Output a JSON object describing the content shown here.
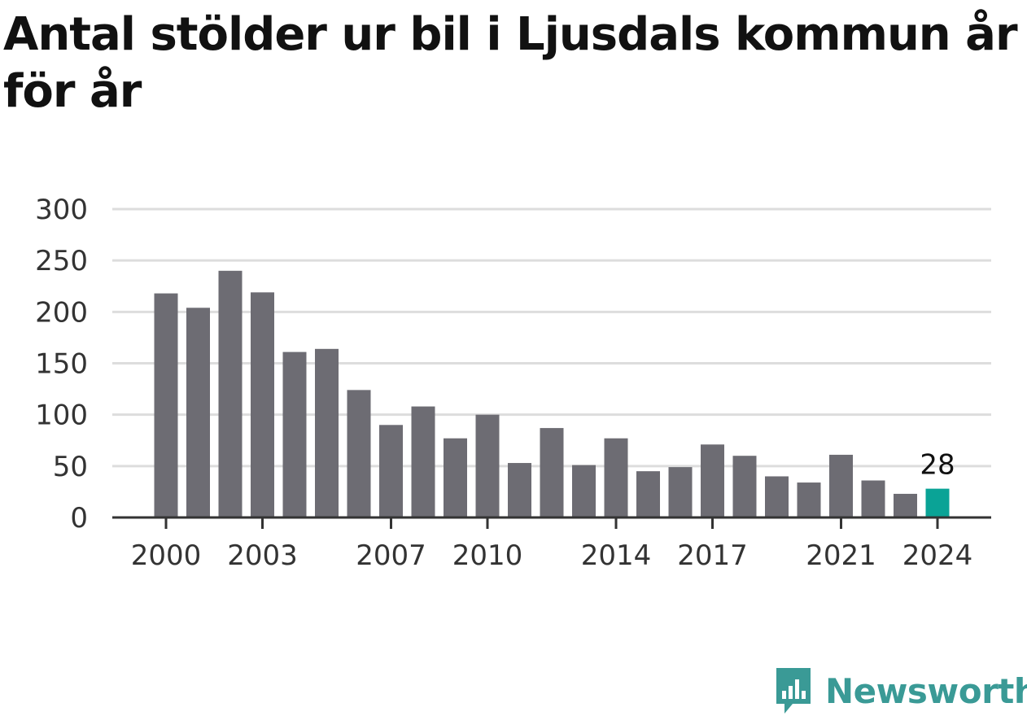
{
  "title": "Antal stölder ur bil i Ljusdals kommun år för år",
  "brand": {
    "name": "Newsworthy",
    "icon": "newsworthy-logo-icon",
    "color": "#3a9a96"
  },
  "colors": {
    "bar": "#6d6c73",
    "highlight": "#0aa396",
    "grid": "#dddddd",
    "axis": "#333333"
  },
  "chart_data": {
    "type": "bar",
    "title": "Antal stölder ur bil i Ljusdals kommun år för år",
    "xlabel": "",
    "ylabel": "",
    "categories": [
      "2000",
      "2001",
      "2002",
      "2003",
      "2004",
      "2005",
      "2006",
      "2007",
      "2008",
      "2009",
      "2010",
      "2011",
      "2012",
      "2013",
      "2014",
      "2015",
      "2016",
      "2017",
      "2018",
      "2019",
      "2020",
      "2021",
      "2022",
      "2023",
      "2024"
    ],
    "values": [
      218,
      204,
      240,
      219,
      161,
      164,
      124,
      90,
      108,
      77,
      100,
      53,
      87,
      51,
      77,
      45,
      49,
      71,
      60,
      40,
      34,
      61,
      36,
      23,
      28
    ],
    "x_tick_labels": [
      "2000",
      "2003",
      "2007",
      "2010",
      "2014",
      "2017",
      "2021",
      "2024"
    ],
    "y_ticks": [
      0,
      50,
      100,
      150,
      200,
      250,
      300
    ],
    "ylim": [
      0,
      300
    ],
    "grid": true,
    "highlight": {
      "category": "2024",
      "label": "28"
    }
  }
}
